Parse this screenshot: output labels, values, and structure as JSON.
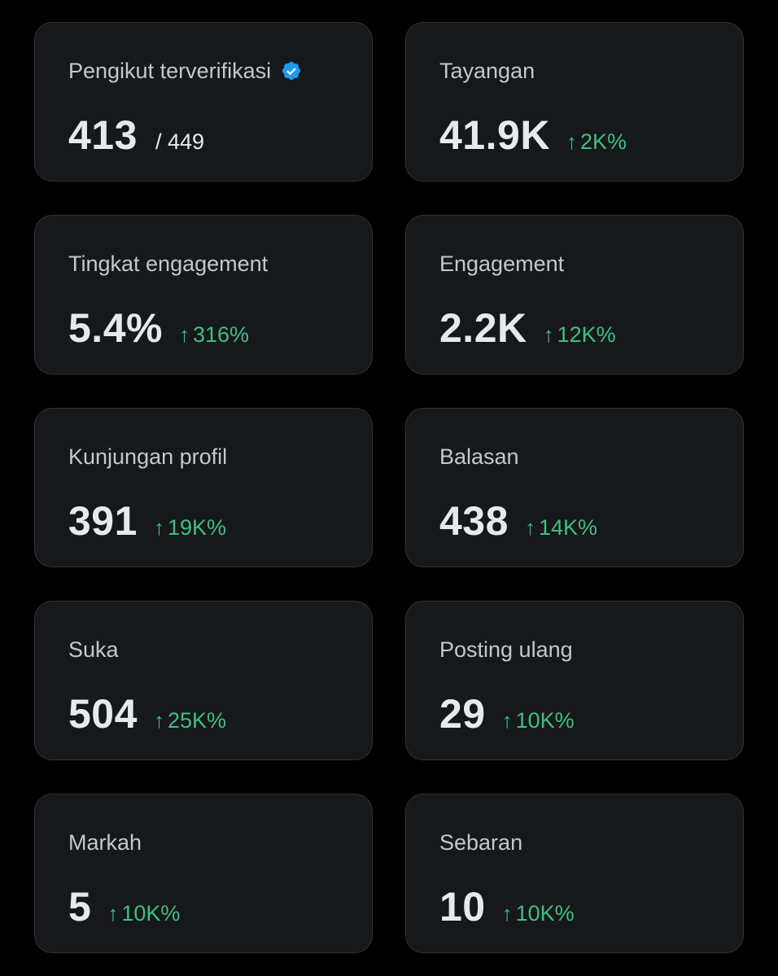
{
  "stats": [
    {
      "label": "Pengikut terverifikasi",
      "value": "413",
      "total": "/ 449",
      "verified": true
    },
    {
      "label": "Tayangan",
      "value": "41.9K",
      "delta": "2K%"
    },
    {
      "label": "Tingkat engagement",
      "value": "5.4%",
      "delta": "316%"
    },
    {
      "label": "Engagement",
      "value": "2.2K",
      "delta": "12K%"
    },
    {
      "label": "Kunjungan profil",
      "value": "391",
      "delta": "19K%"
    },
    {
      "label": "Balasan",
      "value": "438",
      "delta": "14K%"
    },
    {
      "label": "Suka",
      "value": "504",
      "delta": "25K%"
    },
    {
      "label": "Posting ulang",
      "value": "29",
      "delta": "10K%"
    },
    {
      "label": "Markah",
      "value": "5",
      "delta": "10K%"
    },
    {
      "label": "Sebaran",
      "value": "10",
      "delta": "10K%"
    }
  ],
  "icons": {
    "delta_arrow": "↑",
    "verified_badge": "verified-badge-icon"
  },
  "colors": {
    "background": "#000000",
    "card": "#16181c",
    "card_border": "#2f3336",
    "positive": "#3fbf7f",
    "verified": "#1d9bf0"
  }
}
